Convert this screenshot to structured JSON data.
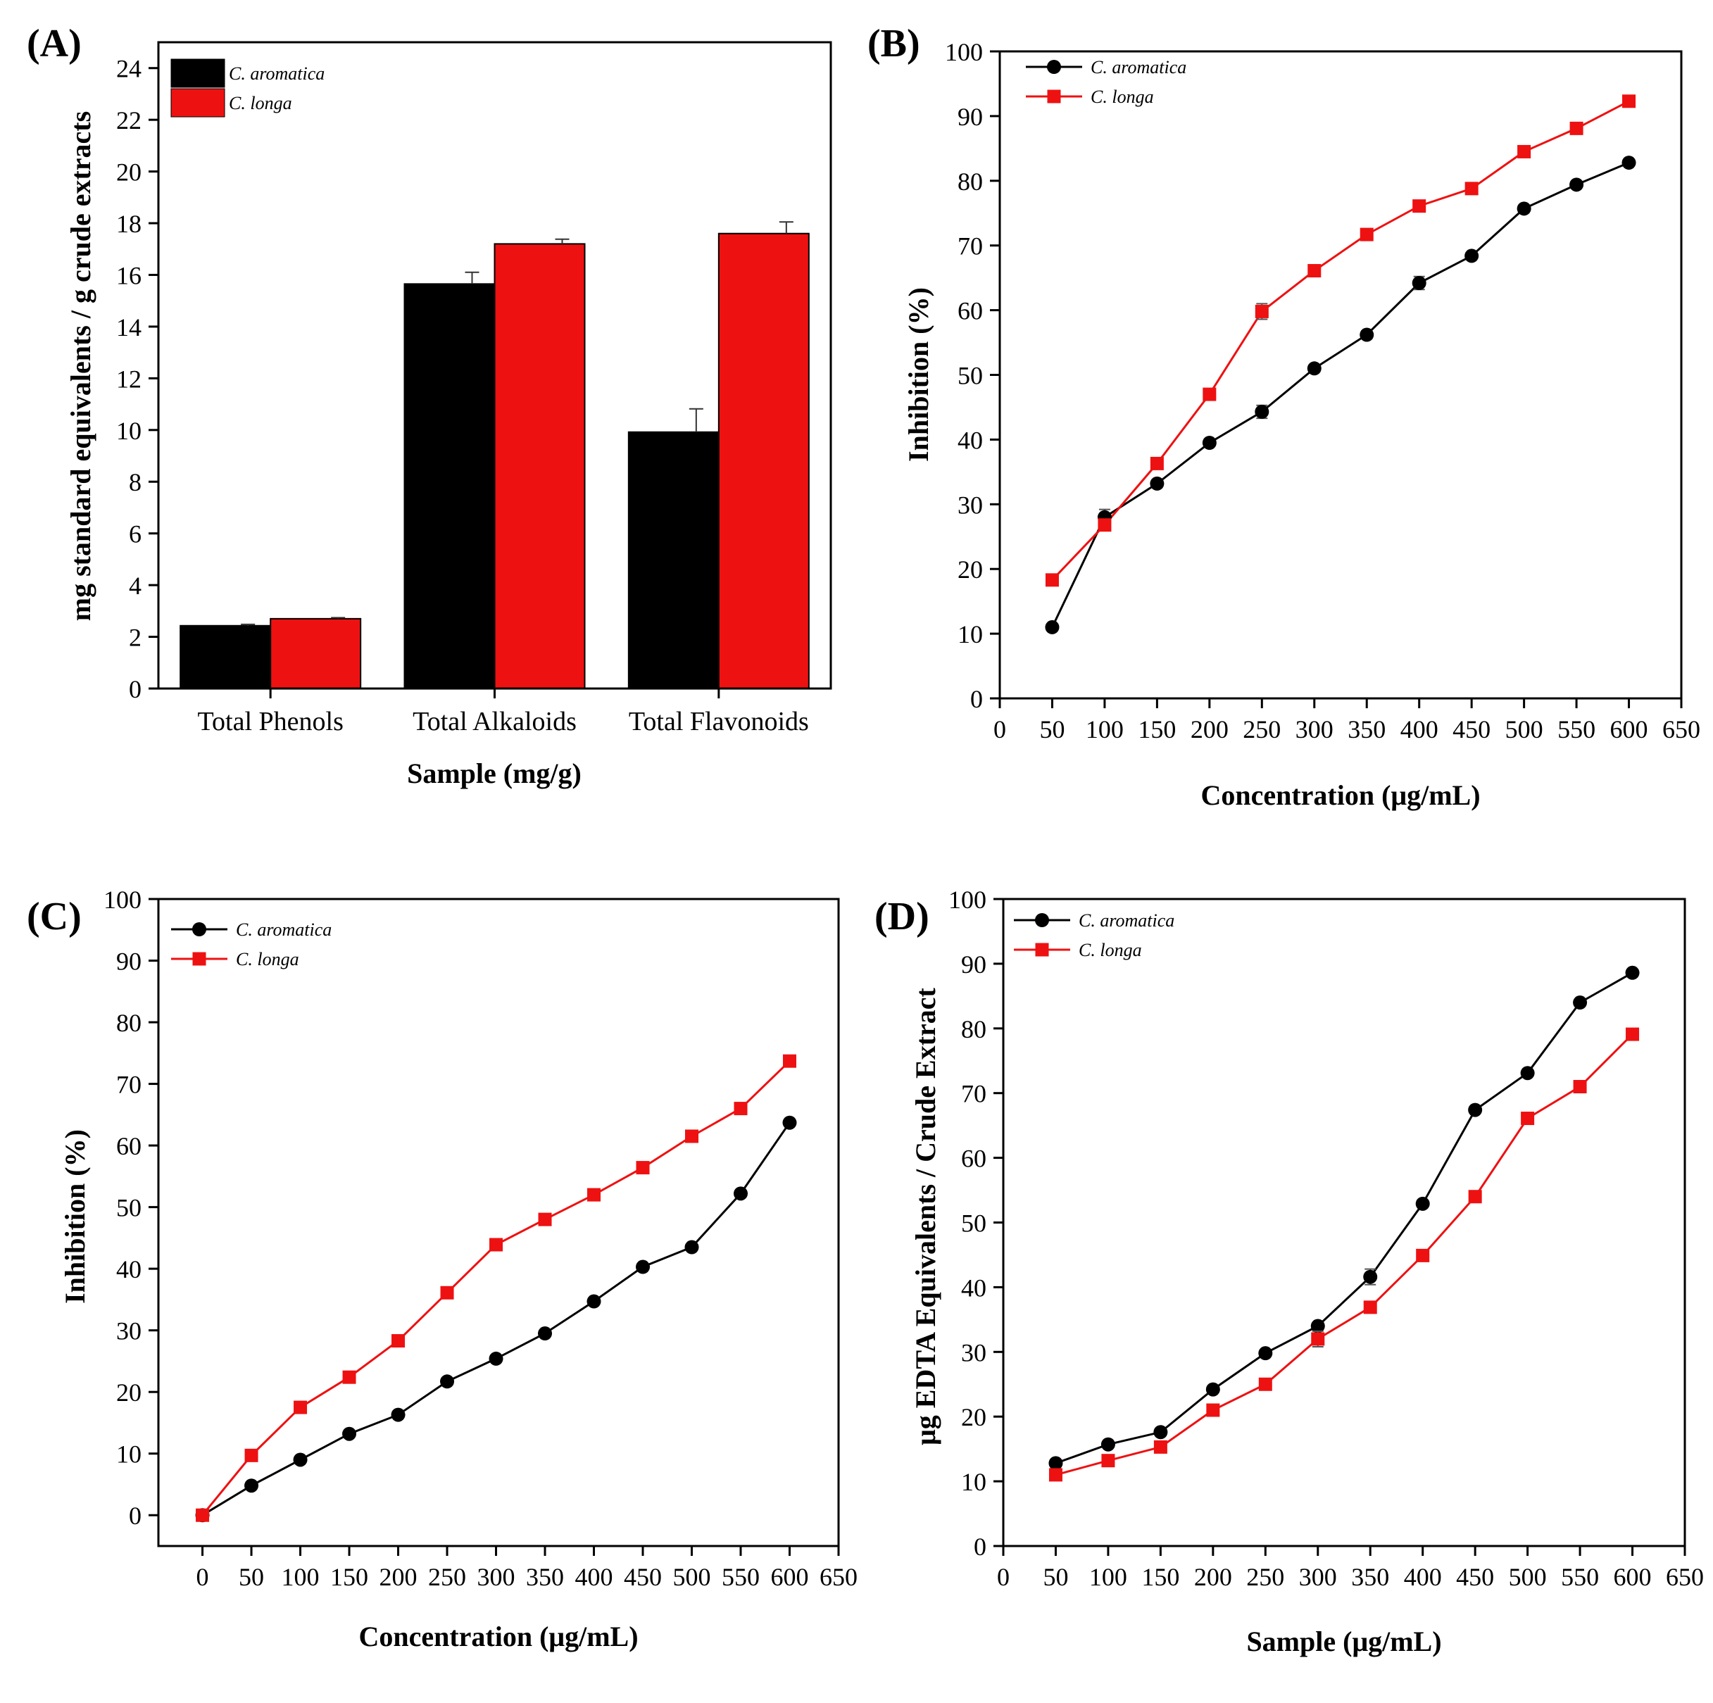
{
  "colors": {
    "c_aromatica": "#000000",
    "c_longa": "#ee1111"
  },
  "chart_data": [
    {
      "panel": "(A)",
      "type": "bar",
      "xlabel": "Sample (mg/g)",
      "ylabel": "mg standard equivalents / g crude extracts",
      "categories": [
        "Total Phenols",
        "Total Alkaloids",
        "Total Flavonoids"
      ],
      "ylim": [
        0,
        25
      ],
      "yticks": [
        0,
        2,
        4,
        6,
        8,
        10,
        12,
        14,
        16,
        18,
        20,
        22,
        24
      ],
      "legend_position": "top-left",
      "series": [
        {
          "name": "C. aromatica",
          "color": "#000000",
          "values": [
            2.43,
            15.65,
            9.92
          ],
          "errors": [
            0.05,
            0.45,
            0.9
          ]
        },
        {
          "name": "C. longa",
          "color": "#ee1111",
          "values": [
            2.7,
            17.2,
            17.6
          ],
          "errors": [
            0.04,
            0.18,
            0.45
          ]
        }
      ]
    },
    {
      "panel": "(B)",
      "type": "line",
      "xlabel": "Concentration (μg/mL)",
      "ylabel": "Inhibition (%)",
      "xlim": [
        0,
        650
      ],
      "ylim": [
        0,
        100
      ],
      "xticks": [
        0,
        50,
        100,
        150,
        200,
        250,
        300,
        350,
        400,
        450,
        500,
        550,
        600,
        650
      ],
      "yticks": [
        0,
        10,
        20,
        30,
        40,
        50,
        60,
        70,
        80,
        90,
        100
      ],
      "legend_position": "top-left",
      "x": [
        50,
        100,
        150,
        200,
        250,
        300,
        350,
        400,
        450,
        500,
        550,
        600
      ],
      "series": [
        {
          "name": "C. aromatica",
          "color": "#000000",
          "marker": "circle",
          "values": [
            11.0,
            28.0,
            33.2,
            39.5,
            44.3,
            51.0,
            56.2,
            64.2,
            68.4,
            75.7,
            79.4,
            82.8
          ],
          "errors": [
            0.4,
            1.2,
            0.6,
            0.5,
            1.0,
            0.4,
            0.6,
            1.0,
            0.5,
            0.5,
            0.4,
            0.4
          ]
        },
        {
          "name": "C. longa",
          "color": "#ee1111",
          "marker": "square",
          "values": [
            18.3,
            26.8,
            36.3,
            47.0,
            59.8,
            66.1,
            71.7,
            76.1,
            78.8,
            84.5,
            88.1,
            92.3
          ],
          "errors": [
            0.4,
            0.8,
            0.5,
            0.5,
            1.2,
            0.4,
            0.4,
            0.4,
            0.4,
            0.4,
            0.4,
            0.4
          ]
        }
      ]
    },
    {
      "panel": "(C)",
      "type": "line",
      "xlabel": "Concentration (μg/mL)",
      "ylabel": "Inhibition (%)",
      "xlim": [
        -45,
        650
      ],
      "ylim": [
        -5,
        100
      ],
      "xticks": [
        0,
        50,
        100,
        150,
        200,
        250,
        300,
        350,
        400,
        450,
        500,
        550,
        600,
        650
      ],
      "yticks": [
        0,
        10,
        20,
        30,
        40,
        50,
        60,
        70,
        80,
        90,
        100
      ],
      "legend_position": "top-left",
      "x": [
        0,
        50,
        100,
        150,
        200,
        250,
        300,
        350,
        400,
        450,
        500,
        550,
        600
      ],
      "series": [
        {
          "name": "C. aromatica",
          "color": "#000000",
          "marker": "circle",
          "values": [
            0.0,
            4.8,
            9.0,
            13.2,
            16.3,
            21.7,
            25.4,
            29.5,
            34.7,
            40.3,
            43.5,
            52.2,
            63.7
          ],
          "errors": [
            0.3,
            0.3,
            0.3,
            0.3,
            0.3,
            0.3,
            0.3,
            0.3,
            0.3,
            0.3,
            0.3,
            0.3,
            0.3
          ]
        },
        {
          "name": "C. longa",
          "color": "#ee1111",
          "marker": "square",
          "values": [
            0.0,
            9.7,
            17.5,
            22.4,
            28.3,
            36.1,
            43.9,
            48.0,
            52.0,
            56.4,
            61.5,
            66.0,
            73.7
          ],
          "errors": [
            0.3,
            0.3,
            0.3,
            0.3,
            0.3,
            0.3,
            0.3,
            0.3,
            0.3,
            0.3,
            0.3,
            0.3,
            0.3
          ]
        }
      ]
    },
    {
      "panel": "(D)",
      "type": "line",
      "xlabel": "Sample (μg/mL)",
      "ylabel": "μg EDTA Equivalents / Crude Extract",
      "xlim": [
        0,
        650
      ],
      "ylim": [
        0,
        100
      ],
      "xticks": [
        0,
        50,
        100,
        150,
        200,
        250,
        300,
        350,
        400,
        450,
        500,
        550,
        600,
        650
      ],
      "yticks": [
        0,
        10,
        20,
        30,
        40,
        50,
        60,
        70,
        80,
        90,
        100
      ],
      "legend_position": "top-left",
      "x": [
        50,
        100,
        150,
        200,
        250,
        300,
        350,
        400,
        450,
        500,
        550,
        600
      ],
      "series": [
        {
          "name": "C. aromatica",
          "color": "#000000",
          "marker": "circle",
          "values": [
            12.8,
            15.7,
            17.6,
            24.2,
            29.8,
            34.0,
            41.6,
            52.9,
            67.4,
            73.1,
            84.0,
            88.6
          ],
          "errors": [
            0.3,
            0.3,
            0.3,
            0.3,
            0.3,
            0.5,
            1.2,
            0.3,
            0.3,
            0.3,
            0.3,
            0.3
          ]
        },
        {
          "name": "C. longa",
          "color": "#ee1111",
          "marker": "square",
          "values": [
            11.0,
            13.2,
            15.3,
            21.0,
            25.0,
            32.0,
            36.9,
            44.9,
            54.0,
            66.1,
            71.0,
            79.1
          ],
          "errors": [
            0.3,
            0.3,
            0.3,
            0.3,
            0.3,
            1.2,
            0.3,
            0.3,
            0.3,
            0.3,
            0.3,
            0.6
          ]
        }
      ]
    }
  ]
}
